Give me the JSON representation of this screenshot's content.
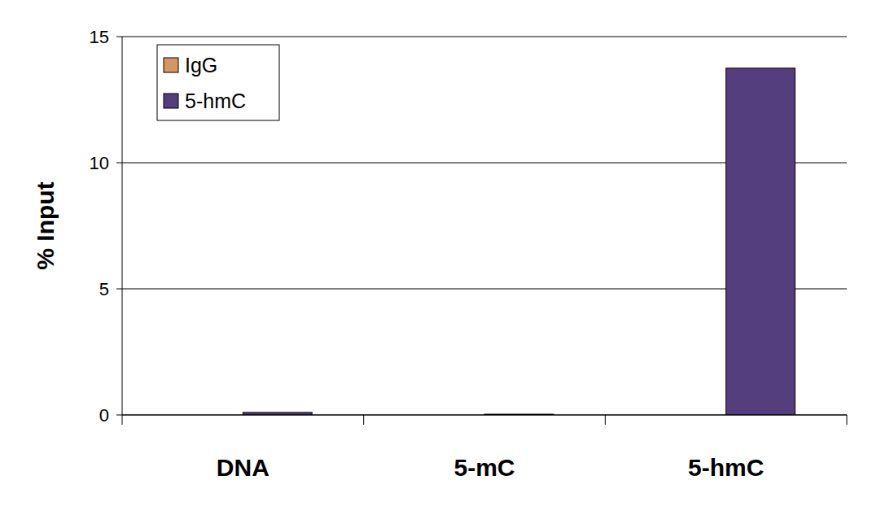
{
  "chart_data": {
    "type": "bar",
    "y_label": "% Input",
    "categories": [
      "DNA",
      "5-mC",
      "5-hmC"
    ],
    "series": [
      {
        "name": "IgG",
        "color": "#d4975f",
        "values": [
          0,
          0,
          0
        ]
      },
      {
        "name": "5-hmC",
        "color": "#553e7d",
        "values": [
          0.1,
          0.03,
          13.75
        ]
      }
    ],
    "ylim": [
      0,
      15
    ],
    "yticks": [
      0,
      5,
      10,
      15
    ],
    "grid": true,
    "legend": "top-left"
  }
}
